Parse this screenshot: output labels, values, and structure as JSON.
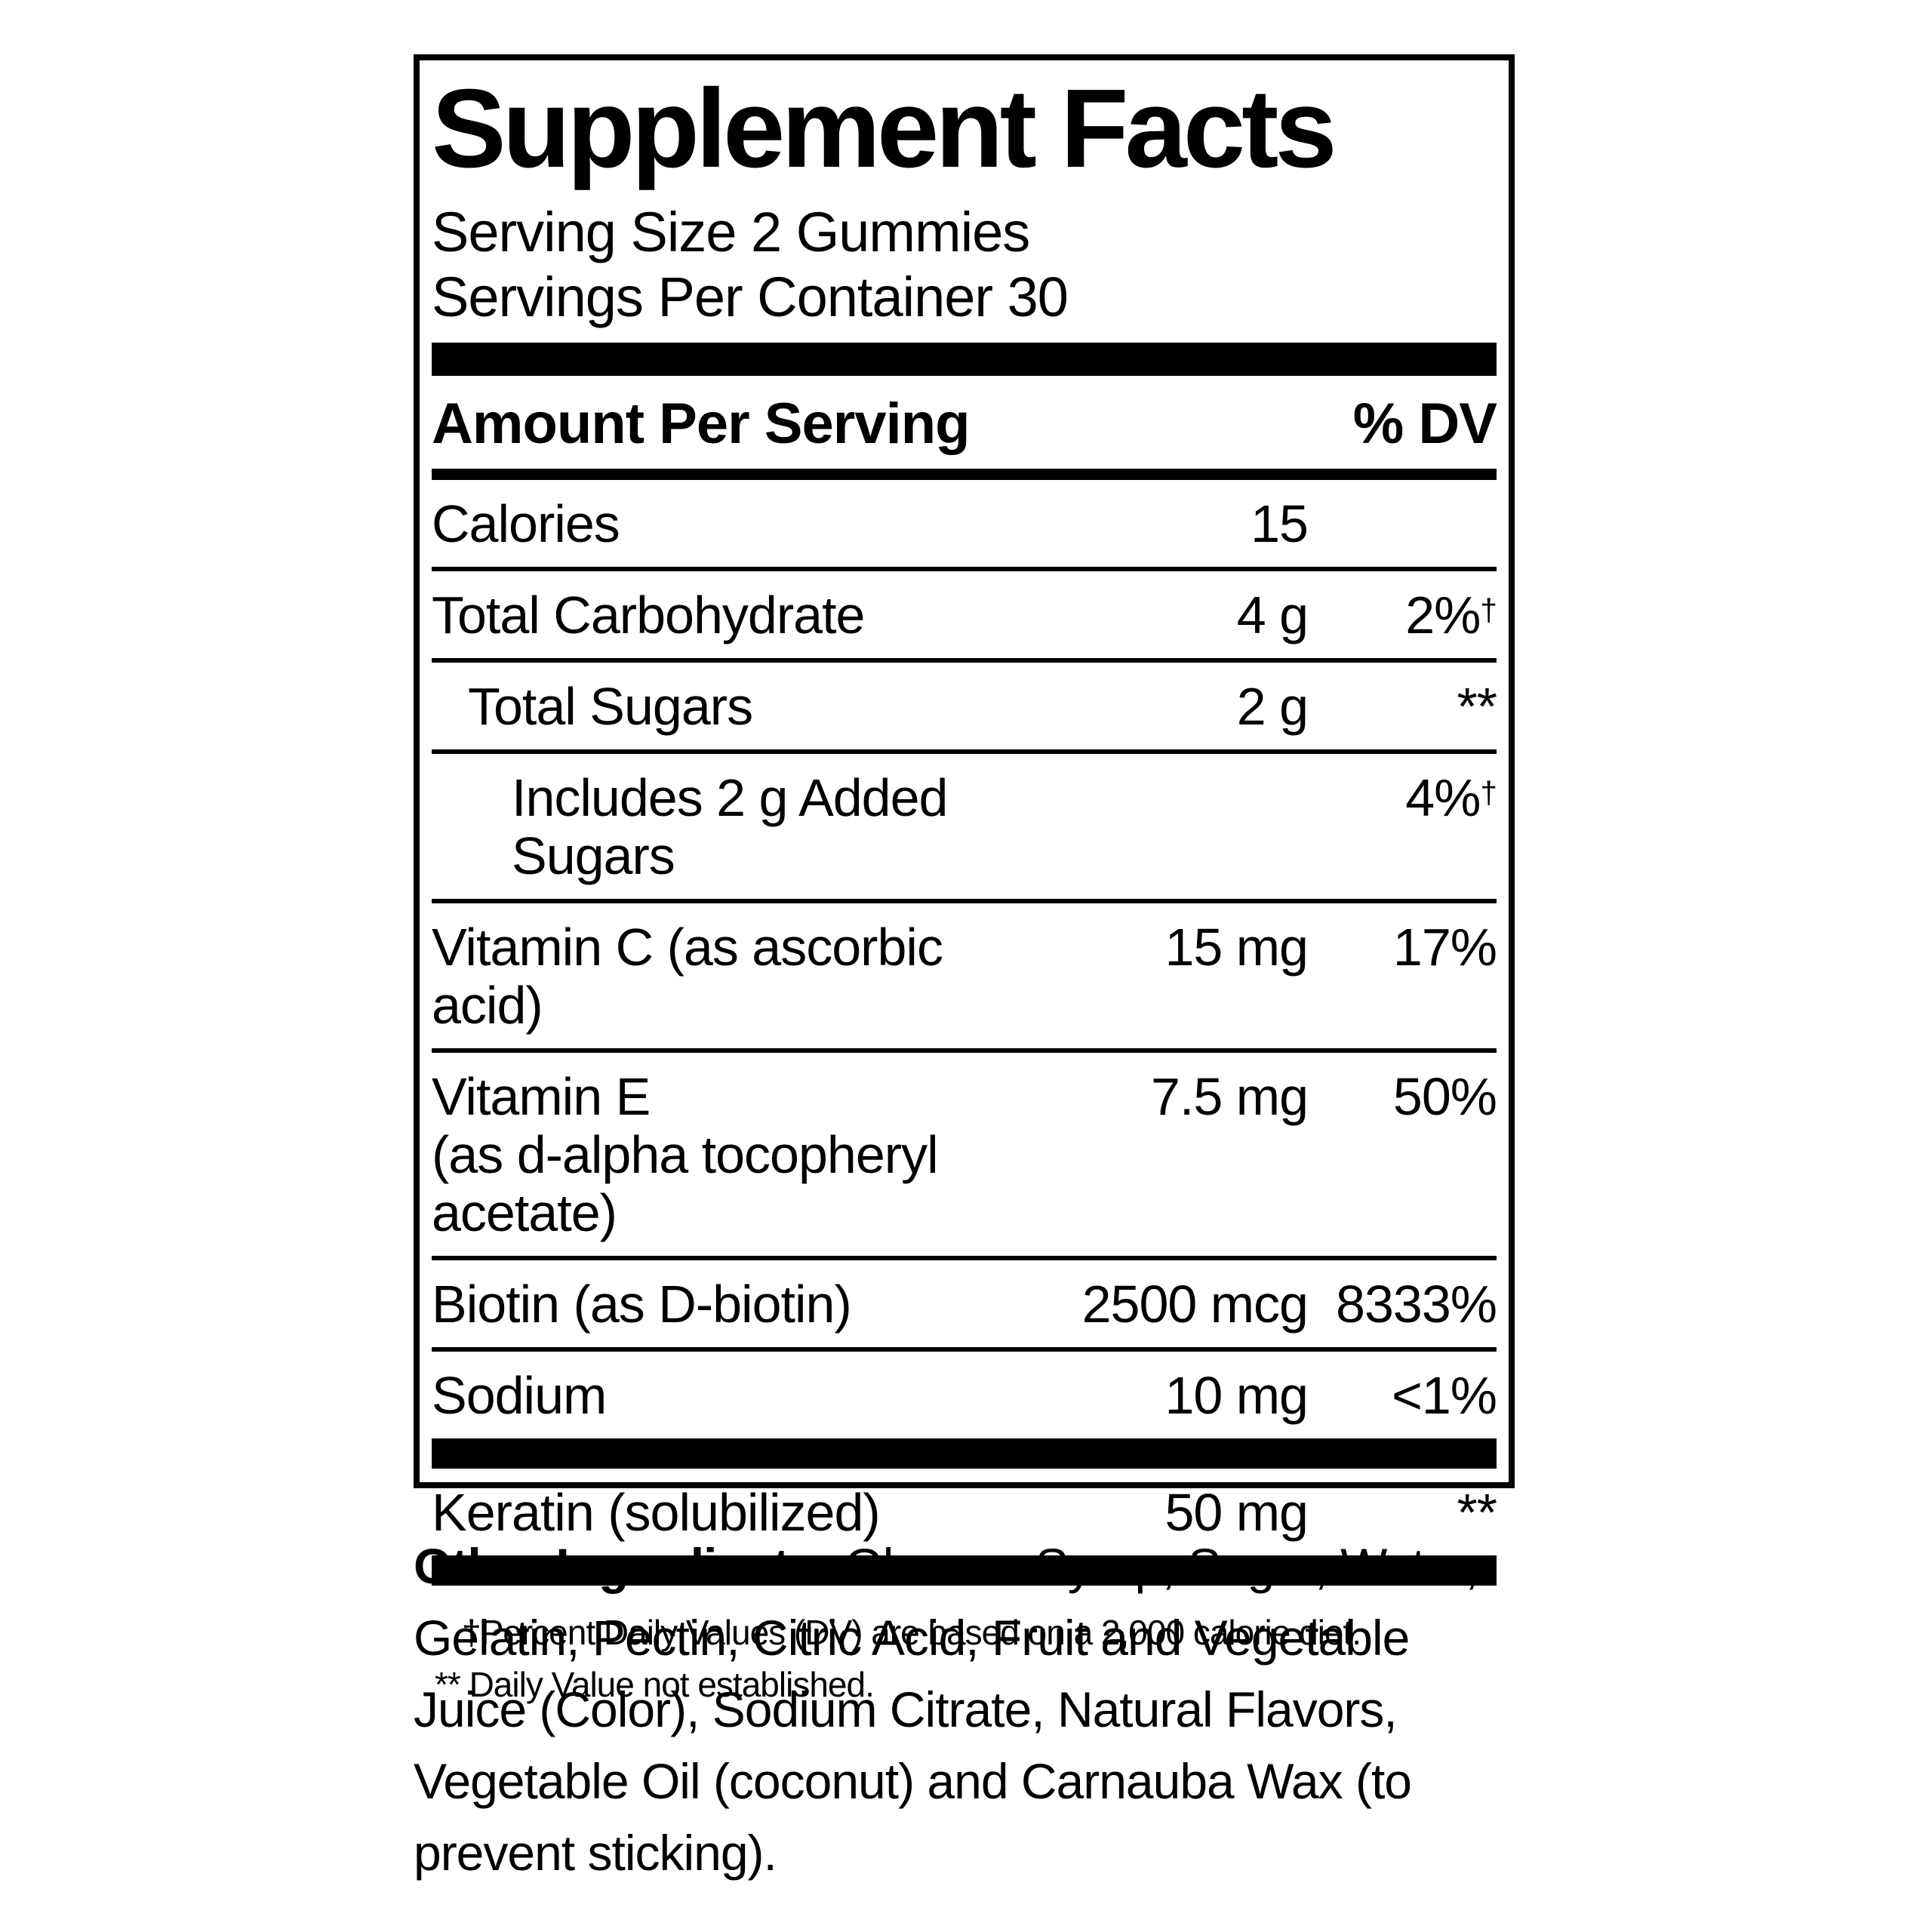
{
  "colors": {
    "text": "#000000",
    "background": "#ffffff"
  },
  "panel": {
    "title": "Supplement Facts",
    "serving_size": "Serving Size 2 Gummies",
    "servings_per_container": "Servings Per Container 30",
    "columns": {
      "amount_header": "Amount Per Serving",
      "dv_header": "% DV"
    },
    "rows": [
      {
        "name": "Calories",
        "amount": "15",
        "dv": "",
        "dv_sup": "",
        "indent": 0
      },
      {
        "name": "Total Carbohydrate",
        "amount": "4 g",
        "dv": "2%",
        "dv_sup": "†",
        "indent": 0
      },
      {
        "name": "Total Sugars",
        "amount": "2 g",
        "dv": "**",
        "dv_sup": "",
        "indent": 1
      },
      {
        "name": "Includes 2 g Added Sugars",
        "amount": "",
        "dv": "4%",
        "dv_sup": "†",
        "indent": 2
      },
      {
        "name": "Vitamin C (as ascorbic acid)",
        "amount": "15 mg",
        "dv": "17%",
        "dv_sup": "",
        "indent": 0
      },
      {
        "name": "Vitamin E",
        "name_line2": "(as d-alpha tocopheryl acetate)",
        "amount": "7.5 mg",
        "dv": "50%",
        "dv_sup": "",
        "indent": 0
      },
      {
        "name": "Biotin (as D-biotin)",
        "amount": "2500 mcg",
        "dv": "8333%",
        "dv_sup": "",
        "indent": 0
      },
      {
        "name": "Sodium",
        "amount": "10 mg",
        "dv": "<1%",
        "dv_sup": "",
        "indent": 0
      }
    ],
    "keratin_row": {
      "name": "Keratin (solubilized)",
      "amount": "50 mg",
      "dv": "**",
      "dv_sup": ""
    },
    "footnotes": {
      "dv_note": "†Percent Daily Values (DV) are based on a 2,000 calorie diet.",
      "not_established_note": "** Daily Value not established."
    }
  },
  "other_ingredients": {
    "heading": "Other Ingredients:",
    "text": " Glucose Syrup, Sugar, Water, Gelatin, Pectin, Citric Acid, Fruit and Vegetable Juice (Color), Sodium Citrate, Natural Flavors, Vegetable Oil (coconut) and Carnauba Wax (to prevent sticking)."
  }
}
